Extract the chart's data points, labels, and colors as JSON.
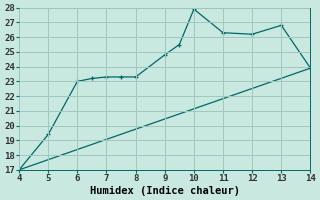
{
  "title": "",
  "xlabel": "Humidex (Indice chaleur)",
  "bg_color": "#c8e8e0",
  "grid_color": "#a0c8c0",
  "line_color": "#006868",
  "marker": "+",
  "xlim": [
    4,
    14
  ],
  "ylim": [
    17,
    28
  ],
  "xticks": [
    4,
    5,
    6,
    7,
    8,
    9,
    10,
    11,
    12,
    13,
    14
  ],
  "yticks": [
    17,
    18,
    19,
    20,
    21,
    22,
    23,
    24,
    25,
    26,
    27,
    28
  ],
  "curve1_x": [
    4,
    5,
    6,
    6.5,
    7,
    7.5,
    8,
    9,
    9.5,
    10,
    11,
    12,
    13,
    14
  ],
  "curve1_y": [
    17.0,
    19.4,
    23.0,
    23.2,
    23.3,
    23.3,
    23.3,
    24.8,
    25.5,
    27.9,
    26.3,
    26.2,
    26.8,
    23.9
  ],
  "curve2_x": [
    4,
    14
  ],
  "curve2_y": [
    17.0,
    23.9
  ],
  "tick_fontsize": 6.5,
  "xlabel_fontsize": 7.5
}
